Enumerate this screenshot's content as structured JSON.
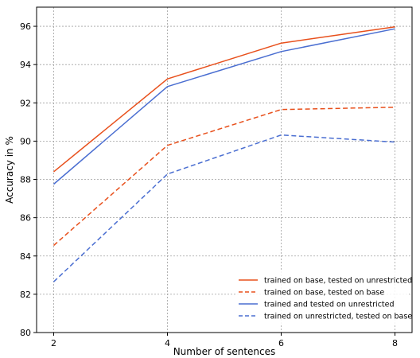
{
  "chart_data": {
    "type": "line",
    "title": "",
    "xlabel": "Number of sentences",
    "ylabel": "Accuracy in %",
    "x": [
      2,
      4,
      6,
      8
    ],
    "x_ticks": [
      "2",
      "4",
      "6",
      "8"
    ],
    "xlim": [
      1.7,
      8.3
    ],
    "ylim": [
      80,
      97
    ],
    "y_ticks": [
      "80",
      "82",
      "84",
      "86",
      "88",
      "90",
      "92",
      "94",
      "96"
    ],
    "grid": true,
    "legend_position": "bottom-right",
    "series": [
      {
        "name": "trained on base, tested on unrestricted",
        "values": [
          88.4,
          93.25,
          95.12,
          95.97
        ],
        "color": "#e8501c",
        "dashed": false
      },
      {
        "name": "trained on base, tested on base",
        "values": [
          84.55,
          89.78,
          91.65,
          91.77
        ],
        "color": "#e8501c",
        "dashed": true
      },
      {
        "name": "trained and tested on unrestricted",
        "values": [
          87.75,
          92.85,
          94.68,
          95.87
        ],
        "color": "#4a6ed1",
        "dashed": false
      },
      {
        "name": "trained on unrestricted, tested on base",
        "values": [
          82.65,
          88.28,
          90.32,
          89.95
        ],
        "color": "#4a6ed1",
        "dashed": true
      }
    ]
  }
}
